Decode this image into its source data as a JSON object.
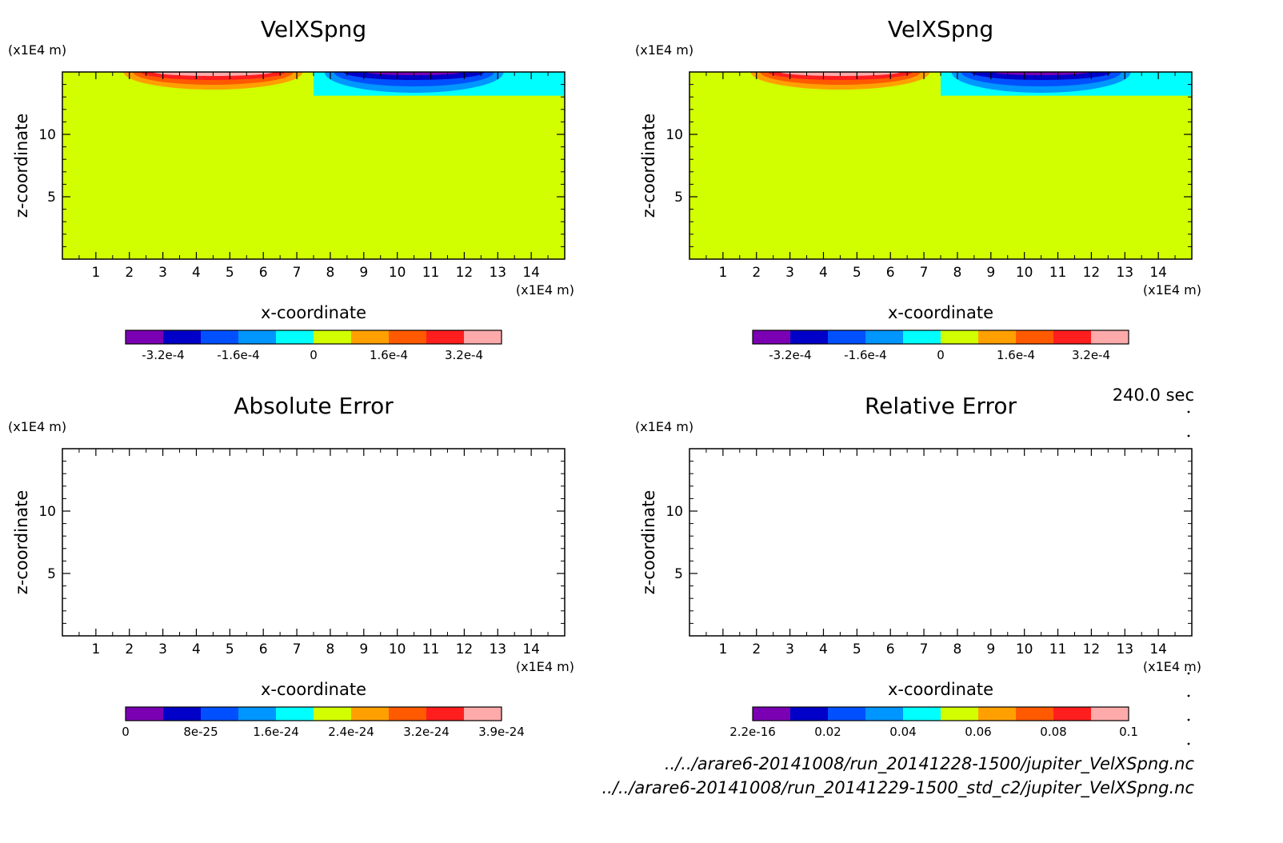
{
  "time_label": "240.0 sec",
  "files": [
    "../../arare6-20141008/run_20141228-1500/jupiter_VelXSpng.nc",
    "../../arare6-20141008/run_20141229-1500_std_c2/jupiter_VelXSpng.nc"
  ],
  "chart_data": [
    {
      "type": "heatmap",
      "title": "VelXSpng",
      "xlabel": "x-coordinate",
      "ylabel": "z-coordinate",
      "x_unit": "(x1E4 m)",
      "y_unit": "(x1E4 m)",
      "xlim": [
        0,
        15
      ],
      "ylim": [
        0,
        15
      ],
      "x_ticks": [
        "1",
        "2",
        "3",
        "4",
        "5",
        "6",
        "7",
        "8",
        "9",
        "10",
        "11",
        "12",
        "13",
        "14"
      ],
      "y_ticks": [
        "5",
        "10"
      ],
      "field": "sponge",
      "colorbar": {
        "colors": [
          "#7b00b4",
          "#0000c8",
          "#0050ff",
          "#0096ff",
          "#00ffff",
          "#d2ff00",
          "#ffa000",
          "#ff5a00",
          "#ff1e1e",
          "#ffaaaa"
        ],
        "tick_labels": [
          "-3.2e-4",
          "-1.6e-4",
          "0",
          "1.6e-4",
          "3.2e-4"
        ],
        "tick_positions": [
          0.5,
          1.5,
          2.5,
          3.5,
          4.5
        ]
      }
    },
    {
      "type": "heatmap",
      "title": "VelXSpng",
      "xlabel": "x-coordinate",
      "ylabel": "z-coordinate",
      "x_unit": "(x1E4 m)",
      "y_unit": "(x1E4 m)",
      "xlim": [
        0,
        15
      ],
      "ylim": [
        0,
        15
      ],
      "x_ticks": [
        "1",
        "2",
        "3",
        "4",
        "5",
        "6",
        "7",
        "8",
        "9",
        "10",
        "11",
        "12",
        "13",
        "14"
      ],
      "y_ticks": [
        "5",
        "10"
      ],
      "field": "sponge",
      "colorbar": {
        "colors": [
          "#7b00b4",
          "#0000c8",
          "#0050ff",
          "#0096ff",
          "#00ffff",
          "#d2ff00",
          "#ffa000",
          "#ff5a00",
          "#ff1e1e",
          "#ffaaaa"
        ],
        "tick_labels": [
          "-3.2e-4",
          "-1.6e-4",
          "0",
          "1.6e-4",
          "3.2e-4"
        ],
        "tick_positions": [
          0.5,
          1.5,
          2.5,
          3.5,
          4.5
        ]
      }
    },
    {
      "type": "heatmap",
      "title": "Absolute Error",
      "xlabel": "x-coordinate",
      "ylabel": "z-coordinate",
      "x_unit": "(x1E4 m)",
      "y_unit": "(x1E4 m)",
      "xlim": [
        0,
        15
      ],
      "ylim": [
        0,
        15
      ],
      "x_ticks": [
        "1",
        "2",
        "3",
        "4",
        "5",
        "6",
        "7",
        "8",
        "9",
        "10",
        "11",
        "12",
        "13",
        "14"
      ],
      "y_ticks": [
        "5",
        "10"
      ],
      "field": "blank",
      "colorbar": {
        "colors": [
          "#7b00b4",
          "#0000c8",
          "#0050ff",
          "#0096ff",
          "#00ffff",
          "#d2ff00",
          "#ffa000",
          "#ff5a00",
          "#ff1e1e",
          "#ffaaaa"
        ],
        "tick_labels": [
          "0",
          "8e-25",
          "1.6e-24",
          "2.4e-24",
          "3.2e-24",
          "3.9e-24"
        ],
        "tick_positions": [
          0,
          1,
          2,
          3,
          4,
          5
        ]
      }
    },
    {
      "type": "heatmap",
      "title": "Relative Error",
      "xlabel": "x-coordinate",
      "ylabel": "z-coordinate",
      "x_unit": "(x1E4 m)",
      "y_unit": "(x1E4 m)",
      "xlim": [
        0,
        15
      ],
      "ylim": [
        0,
        15
      ],
      "x_ticks": [
        "1",
        "2",
        "3",
        "4",
        "5",
        "6",
        "7",
        "8",
        "9",
        "10",
        "11",
        "12",
        "13",
        "14"
      ],
      "y_ticks": [
        "5",
        "10"
      ],
      "field": "blank",
      "colorbar": {
        "colors": [
          "#7b00b4",
          "#0000c8",
          "#0050ff",
          "#0096ff",
          "#00ffff",
          "#d2ff00",
          "#ffa000",
          "#ff5a00",
          "#ff1e1e",
          "#ffaaaa"
        ],
        "tick_labels": [
          "2.2e-16",
          "0.02",
          "0.04",
          "0.06",
          "0.08",
          "0.1"
        ],
        "tick_positions": [
          0,
          1,
          2,
          3,
          4,
          5
        ]
      }
    }
  ]
}
